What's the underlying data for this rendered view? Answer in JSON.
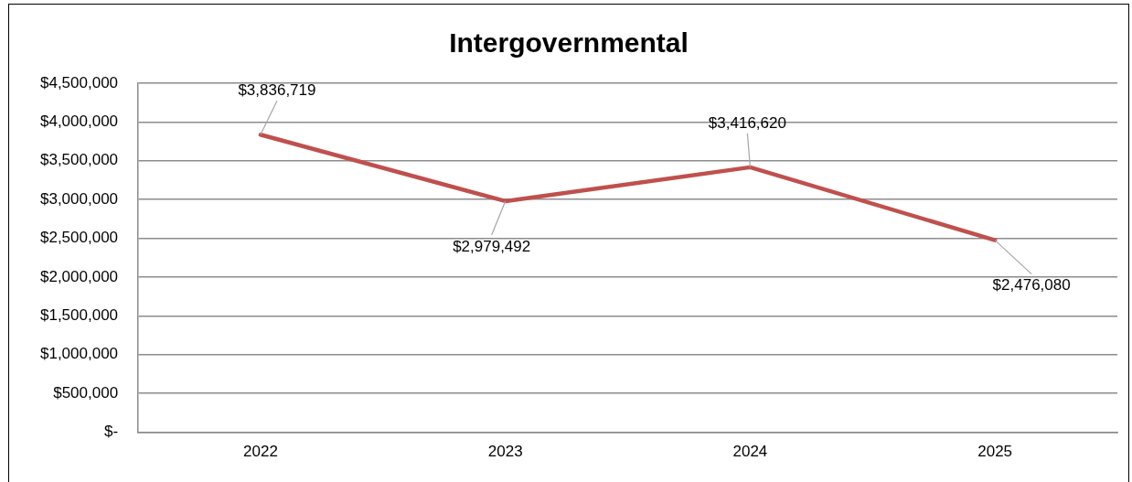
{
  "chart_data": {
    "type": "line",
    "title": "Intergovernmental",
    "categories": [
      "2022",
      "2023",
      "2024",
      "2025"
    ],
    "series": [
      {
        "color": "#c0504d",
        "values": [
          3836719,
          2979492,
          3416620,
          2476080
        ],
        "value_labels": [
          "$3,836,719",
          "$2,979,492",
          "$3,416,620",
          "$2,476,080"
        ]
      }
    ],
    "ylim": [
      0,
      4500000
    ],
    "yticks": [
      {
        "value": 0,
        "label": "$-"
      },
      {
        "value": 500000,
        "label": "$500,000"
      },
      {
        "value": 1000000,
        "label": "$1,000,000"
      },
      {
        "value": 1500000,
        "label": "$1,500,000"
      },
      {
        "value": 2000000,
        "label": "$2,000,000"
      },
      {
        "value": 2500000,
        "label": "$2,500,000"
      },
      {
        "value": 3000000,
        "label": "$3,000,000"
      },
      {
        "value": 3500000,
        "label": "$3,500,000"
      },
      {
        "value": 4000000,
        "label": "$4,000,000"
      },
      {
        "value": 4500000,
        "label": "$4,500,000"
      }
    ],
    "grid": "y",
    "legend": false,
    "marker": "none",
    "line_style": "solid"
  }
}
